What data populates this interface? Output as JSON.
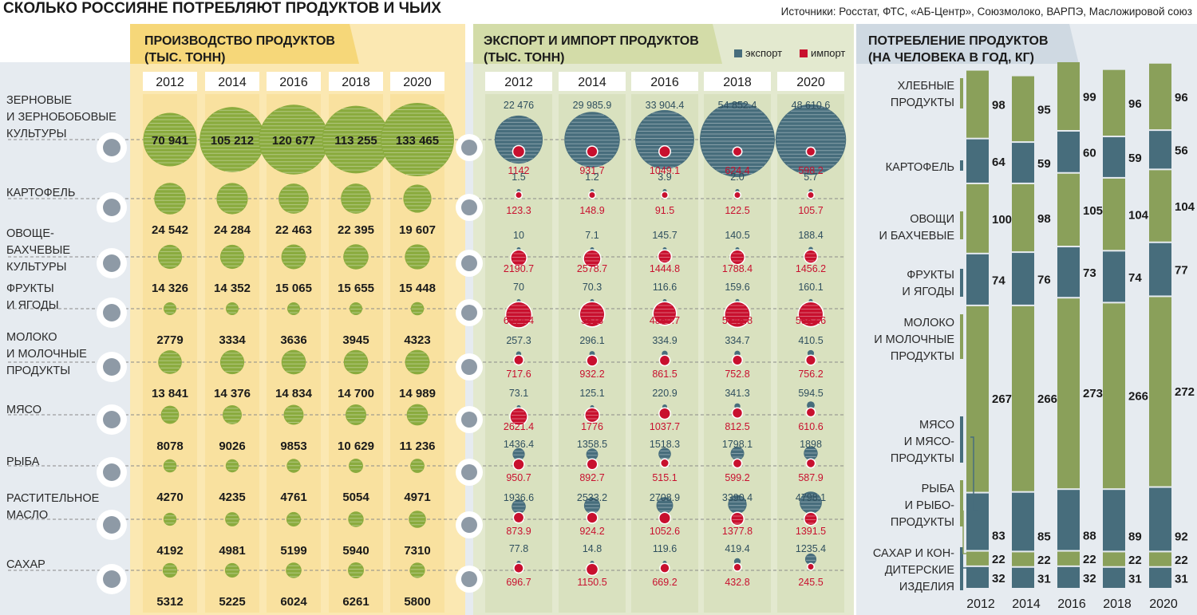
{
  "title": "СКОЛЬКО РОССИЯНЕ ПОТРЕБЛЯЮТ ПРОДУКТОВ И ЧЬИХ",
  "source": "Источники: Росстат, ФТС, «АБ-Центр», Союзмолоко, ВАРПЭ, Масложировой союз",
  "colors": {
    "production": "#8aab3e",
    "export": "#476d7c",
    "import": "#c8102e",
    "consumption_green": "#8aa05a",
    "consumption_teal": "#476d7c",
    "production_bg": "#fbe8b2",
    "trade_bg": "#e3e9cf",
    "left_bg": "#e6ebf0",
    "consumption_bg": "#e6ebf0"
  },
  "chart_data": [
    {
      "type": "bubble",
      "title": "ПРОИЗВОДСТВО ПРОДУКТОВ (ТЫС. ТОНН)",
      "title_lines": [
        "ПРОИЗВОДСТВО ПРОДУКТОВ",
        "(ТЫС. ТОНН)"
      ],
      "years": [
        "2012",
        "2014",
        "2016",
        "2018",
        "2020"
      ],
      "categories": [
        {
          "label_lines": [
            "ЗЕРНОВЫЕ",
            "И ЗЕРНОБОБОВЫЕ",
            "КУЛЬТУРЫ"
          ],
          "icon": "wheat-icon",
          "display": [
            "70 941",
            "105 212",
            "120 677",
            "113 255",
            "133 465"
          ],
          "values": [
            70941,
            105212,
            120677,
            113255,
            133465
          ]
        },
        {
          "label_lines": [
            "КАРТОФЕЛЬ"
          ],
          "icon": "potato-icon",
          "display": [
            "24 542",
            "24 284",
            "22 463",
            "22 395",
            "19 607"
          ],
          "values": [
            24542,
            24284,
            22463,
            22395,
            19607
          ]
        },
        {
          "label_lines": [
            "ОВОЩЕ-",
            "БАХЧЕВЫЕ",
            "КУЛЬТУРЫ"
          ],
          "icon": "watermelon-icon",
          "display": [
            "14 326",
            "14 352",
            "15 065",
            "15 655",
            "15 448"
          ],
          "values": [
            14326,
            14352,
            15065,
            15655,
            15448
          ]
        },
        {
          "label_lines": [
            "ФРУКТЫ",
            "И ЯГОДЫ"
          ],
          "icon": "grapes-icon",
          "display": [
            "2779",
            "3334",
            "3636",
            "3945",
            "4323"
          ],
          "values": [
            2779,
            3334,
            3636,
            3945,
            4323
          ]
        },
        {
          "label_lines": [
            "МОЛОКО",
            "И МОЛОЧНЫЕ",
            "ПРОДУКТЫ"
          ],
          "icon": "milk-bottle-icon",
          "display": [
            "13 841",
            "14 376",
            "14 834",
            "14 700",
            "14 989"
          ],
          "values": [
            13841,
            14376,
            14834,
            14700,
            14989
          ]
        },
        {
          "label_lines": [
            "МЯСО"
          ],
          "icon": "drumstick-icon",
          "display": [
            "8078",
            "9026",
            "9853",
            "10 629",
            "11 236"
          ],
          "values": [
            8078,
            9026,
            9853,
            10629,
            11236
          ]
        },
        {
          "label_lines": [
            "РЫБА"
          ],
          "icon": "fish-icon",
          "display": [
            "4270",
            "4235",
            "4761",
            "5054",
            "4971"
          ],
          "values": [
            4270,
            4235,
            4761,
            5054,
            4971
          ]
        },
        {
          "label_lines": [
            "РАСТИТЕЛЬНОЕ",
            "МАСЛО"
          ],
          "icon": "oil-bottle-icon",
          "display": [
            "4192",
            "4981",
            "5199",
            "5940",
            "7310"
          ],
          "values": [
            4192,
            4981,
            5199,
            5940,
            7310
          ]
        },
        {
          "label_lines": [
            "САХАР"
          ],
          "icon": "sugar-cubes-icon",
          "display": [
            "5312",
            "5225",
            "6024",
            "6261",
            "5800"
          ],
          "values": [
            5312,
            5225,
            6024,
            6261,
            5800
          ]
        }
      ]
    },
    {
      "type": "bubble",
      "title": "ЭКСПОРТ И ИМПОРТ ПРОДУКТОВ (ТЫС. ТОНН)",
      "title_lines": [
        "ЭКСПОРТ И ИМПОРТ ПРОДУКТОВ",
        "(ТЫС. ТОНН)"
      ],
      "legend": [
        "экспорт",
        "импорт"
      ],
      "legend_position": "top-right",
      "years": [
        "2012",
        "2014",
        "2016",
        "2018",
        "2020"
      ],
      "series": [
        {
          "name": "экспорт",
          "rows": [
            [
              "22 476",
              "29 985.9",
              "33 904.4",
              "54 852.4",
              "48 610.6"
            ],
            [
              "1.5",
              "1.2",
              "3.9",
              "2.0",
              "5.7"
            ],
            [
              "10",
              "7.1",
              "145.7",
              "140.5",
              "188.4"
            ],
            [
              "70",
              "70.3",
              "116.6",
              "159.6",
              "160.1"
            ],
            [
              "257.3",
              "296.1",
              "334.9",
              "334.7",
              "410.5"
            ],
            [
              "73.1",
              "125.1",
              "220.9",
              "341.3",
              "594.5"
            ],
            [
              "1436.4",
              "1358.5",
              "1518.3",
              "1798.1",
              "1898"
            ],
            [
              "1936.6",
              "2533.2",
              "2708.9",
              "3390.4",
              "4798.1"
            ],
            [
              "77.8",
              "14.8",
              "119.6",
              "419.4",
              "1235.4"
            ]
          ]
        },
        {
          "name": "импорт",
          "rows": [
            [
              "1142",
              "931.7",
              "1049.1",
              "624.4",
              "598.2"
            ],
            [
              "123.3",
              "148.9",
              "91.5",
              "122.5",
              "105.7"
            ],
            [
              "2190.7",
              "2578.7",
              "1444.8",
              "1788.4",
              "1456.2"
            ],
            [
              "6074.4",
              "5616",
              "4850.7",
              "5845.8",
              "5552.6"
            ],
            [
              "717.6",
              "932.2",
              "861.5",
              "752.8",
              "756.2"
            ],
            [
              "2621.4",
              "1776",
              "1037.7",
              "812.5",
              "610.6"
            ],
            [
              "950.7",
              "892.7",
              "515.1",
              "599.2",
              "587.9"
            ],
            [
              "873.9",
              "924.2",
              "1052.6",
              "1377.8",
              "1391.5"
            ],
            [
              "696.7",
              "1150.5",
              "669.2",
              "432.8",
              "245.5"
            ]
          ]
        }
      ]
    },
    {
      "type": "bar",
      "stacked": true,
      "title": "ПОТРЕБЛЕНИЕ ПРОДУКТОВ (НА ЧЕЛОВЕКА В ГОД, КГ)",
      "title_lines": [
        "ПОТРЕБЛЕНИЕ ПРОДУКТОВ",
        "(НА ЧЕЛОВЕКА В ГОД, КГ)"
      ],
      "categories": [
        "2012",
        "2014",
        "2016",
        "2018",
        "2020"
      ],
      "series": [
        {
          "name": "ХЛЕБНЫЕ ПРОДУКТЫ",
          "label_lines": [
            "ХЛЕБНЫЕ",
            "ПРОДУКТЫ"
          ],
          "values": [
            98,
            95,
            99,
            96,
            96
          ]
        },
        {
          "name": "КАРТОФЕЛЬ",
          "label_lines": [
            "КАРТОФЕЛЬ"
          ],
          "values": [
            64,
            59,
            60,
            59,
            56
          ]
        },
        {
          "name": "ОВОЩИ И БАХЧЕВЫЕ",
          "label_lines": [
            "ОВОЩИ",
            "И БАХЧЕВЫЕ"
          ],
          "values": [
            100,
            98,
            105,
            104,
            104
          ]
        },
        {
          "name": "ФРУКТЫ И ЯГОДЫ",
          "label_lines": [
            "ФРУКТЫ",
            "И ЯГОДЫ"
          ],
          "values": [
            74,
            76,
            73,
            74,
            77
          ]
        },
        {
          "name": "МОЛОКО И МОЛОЧНЫЕ ПРОДУКТЫ",
          "label_lines": [
            "МОЛОКО",
            "И МОЛОЧНЫЕ",
            "ПРОДУКТЫ"
          ],
          "values": [
            267,
            266,
            273,
            266,
            272
          ]
        },
        {
          "name": "МЯСО И МЯСОПРОДУКТЫ",
          "label_lines": [
            "МЯСО",
            "И МЯСО-",
            "ПРОДУКТЫ"
          ],
          "values": [
            83,
            85,
            88,
            89,
            92
          ]
        },
        {
          "name": "РЫБА И РЫБОПРОДУКТЫ",
          "label_lines": [
            "РЫБА",
            "И РЫБО-",
            "ПРОДУКТЫ"
          ],
          "values": [
            22,
            22,
            22,
            22,
            22
          ]
        },
        {
          "name": "САХАР И КОНДИТЕРСКИЕ ИЗДЕЛИЯ",
          "label_lines": [
            "САХАР И КОН-",
            "ДИТЕРСКИЕ",
            "ИЗДЕЛИЯ"
          ],
          "values": [
            32,
            31,
            32,
            31,
            31
          ]
        }
      ]
    }
  ]
}
